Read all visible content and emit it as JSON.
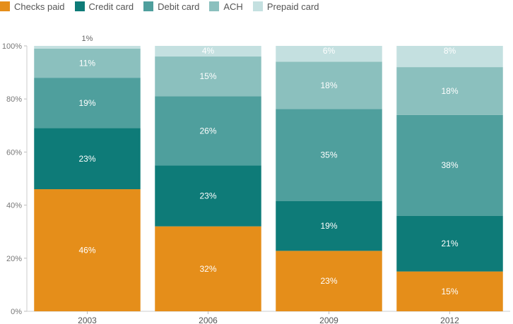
{
  "chart_data": {
    "type": "bar",
    "stacked": true,
    "percent": true,
    "categories": [
      "2003",
      "2006",
      "2009",
      "2012"
    ],
    "series": [
      {
        "name": "Checks paid",
        "color": "#e58e1a",
        "values": [
          46,
          32,
          23,
          15
        ],
        "labels": [
          "46%",
          "32%",
          "23%",
          "15%"
        ]
      },
      {
        "name": "Credit card",
        "color": "#0e7b78",
        "values": [
          23,
          23,
          19,
          21
        ],
        "labels": [
          "23%",
          "23%",
          "19%",
          "21%"
        ]
      },
      {
        "name": "Debit card",
        "color": "#4f9f9d",
        "values": [
          19,
          26,
          35,
          38
        ],
        "labels": [
          "19%",
          "26%",
          "35%",
          "38%"
        ]
      },
      {
        "name": "ACH",
        "color": "#8bc0be",
        "values": [
          11,
          15,
          18,
          18
        ],
        "labels": [
          "11%",
          "15%",
          "18%",
          "18%"
        ]
      },
      {
        "name": "Prepaid card",
        "color": "#c4e0e0",
        "values": [
          1,
          4,
          6,
          8
        ],
        "labels": [
          "1%",
          "4%",
          "6%",
          "8%"
        ]
      }
    ],
    "ylim": [
      0,
      100
    ],
    "yticks": [
      "0%",
      "20%",
      "40%",
      "60%",
      "80%",
      "100%"
    ],
    "legend_position": "top-left",
    "grid": false
  }
}
